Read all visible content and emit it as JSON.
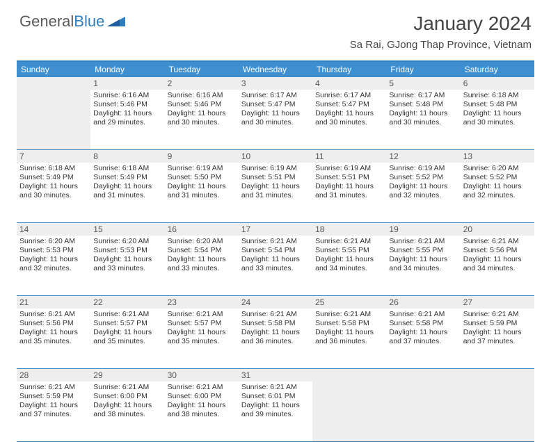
{
  "brand": {
    "name1": "General",
    "name2": "Blue"
  },
  "title": "January 2024",
  "location": "Sa Rai, GJong Thap Province, Vietnam",
  "day_headers": [
    "Sunday",
    "Monday",
    "Tuesday",
    "Wednesday",
    "Thursday",
    "Friday",
    "Saturday"
  ],
  "colors": {
    "header_bg": "#3d8fcf",
    "rule": "#2f7fbf",
    "daynum_bg": "#eeeeee",
    "text": "#333333"
  },
  "typography": {
    "title_fontsize": 28,
    "location_fontsize": 15,
    "dayhead_fontsize": 12,
    "cell_fontsize": 10.5
  },
  "weeks": [
    [
      null,
      {
        "n": "1",
        "sr": "Sunrise: 6:16 AM",
        "ss": "Sunset: 5:46 PM",
        "d1": "Daylight: 11 hours",
        "d2": "and 29 minutes."
      },
      {
        "n": "2",
        "sr": "Sunrise: 6:16 AM",
        "ss": "Sunset: 5:46 PM",
        "d1": "Daylight: 11 hours",
        "d2": "and 30 minutes."
      },
      {
        "n": "3",
        "sr": "Sunrise: 6:17 AM",
        "ss": "Sunset: 5:47 PM",
        "d1": "Daylight: 11 hours",
        "d2": "and 30 minutes."
      },
      {
        "n": "4",
        "sr": "Sunrise: 6:17 AM",
        "ss": "Sunset: 5:47 PM",
        "d1": "Daylight: 11 hours",
        "d2": "and 30 minutes."
      },
      {
        "n": "5",
        "sr": "Sunrise: 6:17 AM",
        "ss": "Sunset: 5:48 PM",
        "d1": "Daylight: 11 hours",
        "d2": "and 30 minutes."
      },
      {
        "n": "6",
        "sr": "Sunrise: 6:18 AM",
        "ss": "Sunset: 5:48 PM",
        "d1": "Daylight: 11 hours",
        "d2": "and 30 minutes."
      }
    ],
    [
      {
        "n": "7",
        "sr": "Sunrise: 6:18 AM",
        "ss": "Sunset: 5:49 PM",
        "d1": "Daylight: 11 hours",
        "d2": "and 30 minutes."
      },
      {
        "n": "8",
        "sr": "Sunrise: 6:18 AM",
        "ss": "Sunset: 5:49 PM",
        "d1": "Daylight: 11 hours",
        "d2": "and 31 minutes."
      },
      {
        "n": "9",
        "sr": "Sunrise: 6:19 AM",
        "ss": "Sunset: 5:50 PM",
        "d1": "Daylight: 11 hours",
        "d2": "and 31 minutes."
      },
      {
        "n": "10",
        "sr": "Sunrise: 6:19 AM",
        "ss": "Sunset: 5:51 PM",
        "d1": "Daylight: 11 hours",
        "d2": "and 31 minutes."
      },
      {
        "n": "11",
        "sr": "Sunrise: 6:19 AM",
        "ss": "Sunset: 5:51 PM",
        "d1": "Daylight: 11 hours",
        "d2": "and 31 minutes."
      },
      {
        "n": "12",
        "sr": "Sunrise: 6:19 AM",
        "ss": "Sunset: 5:52 PM",
        "d1": "Daylight: 11 hours",
        "d2": "and 32 minutes."
      },
      {
        "n": "13",
        "sr": "Sunrise: 6:20 AM",
        "ss": "Sunset: 5:52 PM",
        "d1": "Daylight: 11 hours",
        "d2": "and 32 minutes."
      }
    ],
    [
      {
        "n": "14",
        "sr": "Sunrise: 6:20 AM",
        "ss": "Sunset: 5:53 PM",
        "d1": "Daylight: 11 hours",
        "d2": "and 32 minutes."
      },
      {
        "n": "15",
        "sr": "Sunrise: 6:20 AM",
        "ss": "Sunset: 5:53 PM",
        "d1": "Daylight: 11 hours",
        "d2": "and 33 minutes."
      },
      {
        "n": "16",
        "sr": "Sunrise: 6:20 AM",
        "ss": "Sunset: 5:54 PM",
        "d1": "Daylight: 11 hours",
        "d2": "and 33 minutes."
      },
      {
        "n": "17",
        "sr": "Sunrise: 6:21 AM",
        "ss": "Sunset: 5:54 PM",
        "d1": "Daylight: 11 hours",
        "d2": "and 33 minutes."
      },
      {
        "n": "18",
        "sr": "Sunrise: 6:21 AM",
        "ss": "Sunset: 5:55 PM",
        "d1": "Daylight: 11 hours",
        "d2": "and 34 minutes."
      },
      {
        "n": "19",
        "sr": "Sunrise: 6:21 AM",
        "ss": "Sunset: 5:55 PM",
        "d1": "Daylight: 11 hours",
        "d2": "and 34 minutes."
      },
      {
        "n": "20",
        "sr": "Sunrise: 6:21 AM",
        "ss": "Sunset: 5:56 PM",
        "d1": "Daylight: 11 hours",
        "d2": "and 34 minutes."
      }
    ],
    [
      {
        "n": "21",
        "sr": "Sunrise: 6:21 AM",
        "ss": "Sunset: 5:56 PM",
        "d1": "Daylight: 11 hours",
        "d2": "and 35 minutes."
      },
      {
        "n": "22",
        "sr": "Sunrise: 6:21 AM",
        "ss": "Sunset: 5:57 PM",
        "d1": "Daylight: 11 hours",
        "d2": "and 35 minutes."
      },
      {
        "n": "23",
        "sr": "Sunrise: 6:21 AM",
        "ss": "Sunset: 5:57 PM",
        "d1": "Daylight: 11 hours",
        "d2": "and 35 minutes."
      },
      {
        "n": "24",
        "sr": "Sunrise: 6:21 AM",
        "ss": "Sunset: 5:58 PM",
        "d1": "Daylight: 11 hours",
        "d2": "and 36 minutes."
      },
      {
        "n": "25",
        "sr": "Sunrise: 6:21 AM",
        "ss": "Sunset: 5:58 PM",
        "d1": "Daylight: 11 hours",
        "d2": "and 36 minutes."
      },
      {
        "n": "26",
        "sr": "Sunrise: 6:21 AM",
        "ss": "Sunset: 5:58 PM",
        "d1": "Daylight: 11 hours",
        "d2": "and 37 minutes."
      },
      {
        "n": "27",
        "sr": "Sunrise: 6:21 AM",
        "ss": "Sunset: 5:59 PM",
        "d1": "Daylight: 11 hours",
        "d2": "and 37 minutes."
      }
    ],
    [
      {
        "n": "28",
        "sr": "Sunrise: 6:21 AM",
        "ss": "Sunset: 5:59 PM",
        "d1": "Daylight: 11 hours",
        "d2": "and 37 minutes."
      },
      {
        "n": "29",
        "sr": "Sunrise: 6:21 AM",
        "ss": "Sunset: 6:00 PM",
        "d1": "Daylight: 11 hours",
        "d2": "and 38 minutes."
      },
      {
        "n": "30",
        "sr": "Sunrise: 6:21 AM",
        "ss": "Sunset: 6:00 PM",
        "d1": "Daylight: 11 hours",
        "d2": "and 38 minutes."
      },
      {
        "n": "31",
        "sr": "Sunrise: 6:21 AM",
        "ss": "Sunset: 6:01 PM",
        "d1": "Daylight: 11 hours",
        "d2": "and 39 minutes."
      },
      null,
      null,
      null
    ]
  ]
}
